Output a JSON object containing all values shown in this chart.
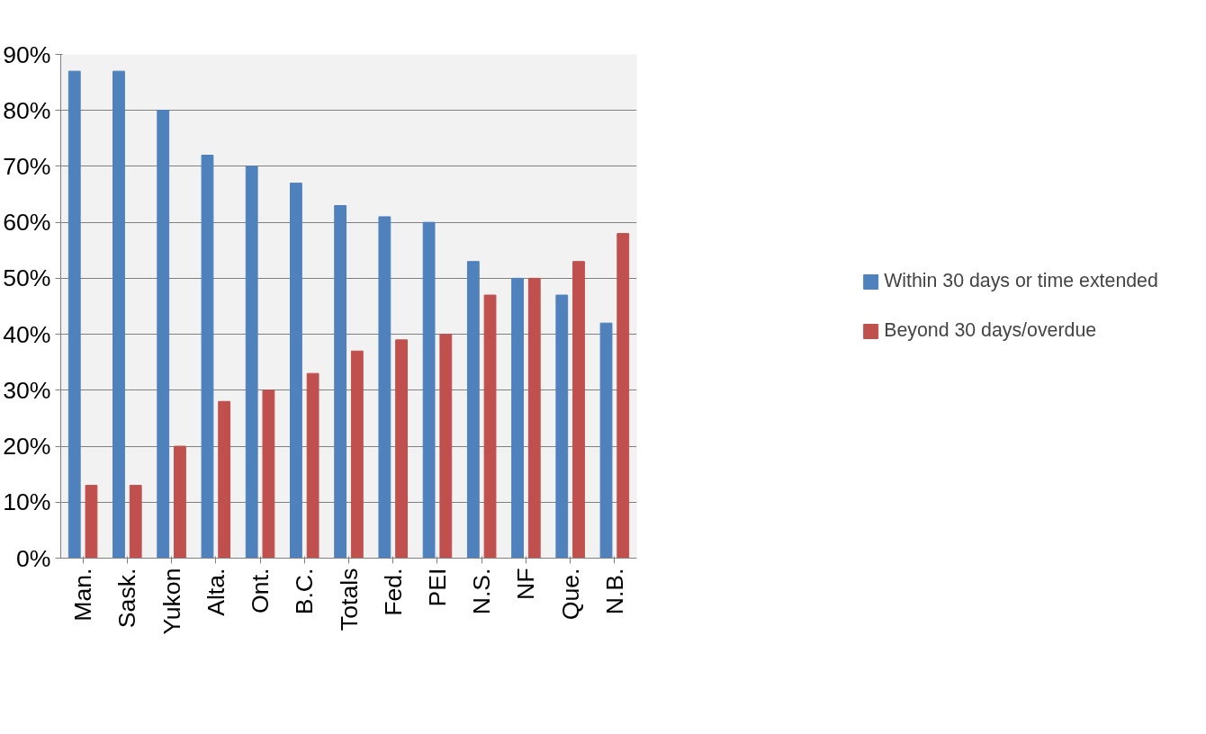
{
  "chart_data": {
    "type": "bar",
    "categories": [
      "Man.",
      "Sask.",
      "Yukon",
      "Alta.",
      "Ont.",
      "B.C.",
      "Totals",
      "Fed.",
      "PEI",
      "N.S.",
      "NF",
      "Que.",
      "N.B."
    ],
    "series": [
      {
        "name": "Within 30 days or time extended",
        "color": "#4f81bd",
        "values": [
          87,
          87,
          80,
          72,
          70,
          67,
          63,
          61,
          60,
          53,
          50,
          47,
          42
        ]
      },
      {
        "name": "Beyond 30 days/overdue",
        "color": "#c0504d",
        "values": [
          13,
          13,
          20,
          28,
          30,
          33,
          37,
          39,
          40,
          47,
          50,
          53,
          58
        ]
      }
    ],
    "ylim": [
      0,
      90
    ],
    "yticks": [
      {
        "value": 0,
        "label": "0%"
      },
      {
        "value": 10,
        "label": "10%"
      },
      {
        "value": 20,
        "label": "20%"
      },
      {
        "value": 30,
        "label": "30%"
      },
      {
        "value": 40,
        "label": "40%"
      },
      {
        "value": 50,
        "label": "50%"
      },
      {
        "value": 60,
        "label": "60%"
      },
      {
        "value": 70,
        "label": "70%"
      },
      {
        "value": 80,
        "label": "80%"
      },
      {
        "value": 90,
        "label": "90%"
      }
    ],
    "grid": "y",
    "legend": "right"
  }
}
